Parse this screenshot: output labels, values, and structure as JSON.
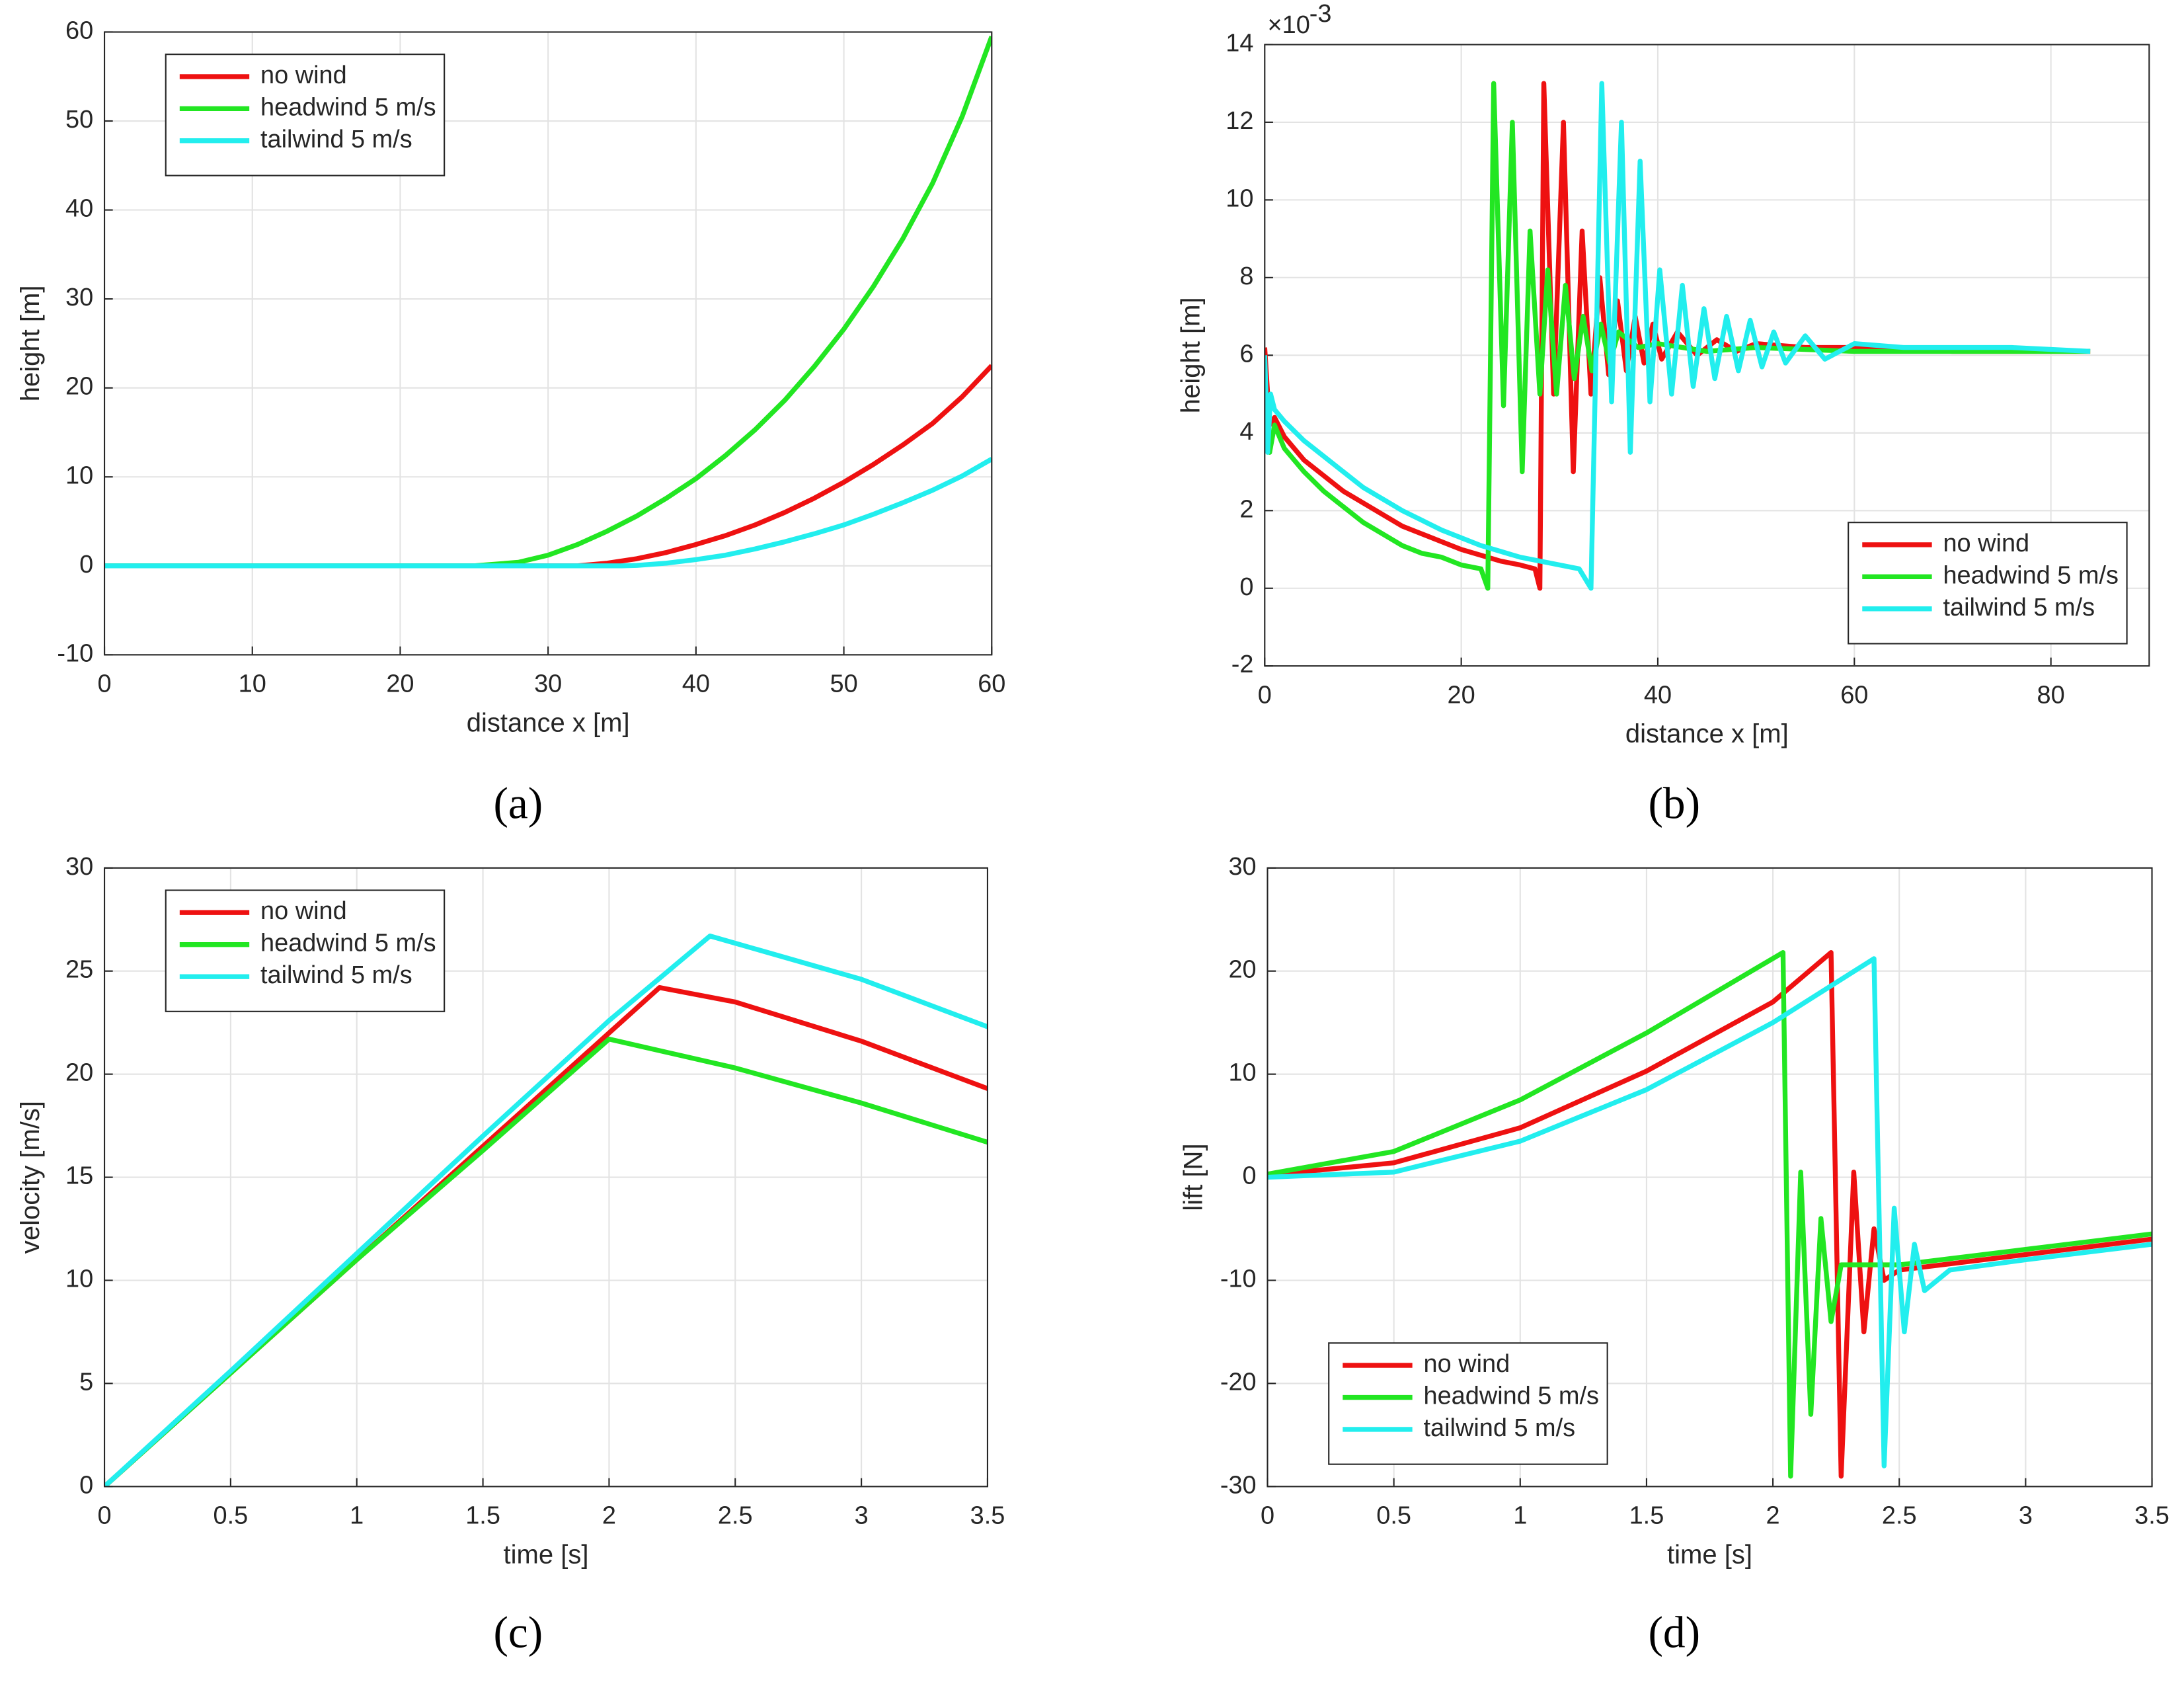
{
  "chart_data": [
    {
      "type": "line",
      "caption": "(a)",
      "xlabel": "distance x [m]",
      "ylabel": "height [m]",
      "xlim": [
        0,
        60
      ],
      "ylim": [
        -10,
        60
      ],
      "xticks": [
        0,
        10,
        20,
        30,
        40,
        50,
        60
      ],
      "yticks": [
        -10,
        0,
        10,
        20,
        30,
        40,
        50,
        60
      ],
      "grid": true,
      "legend": "upper left",
      "series": [
        {
          "name": "no wind",
          "color": "#ee1111",
          "x": [
            0,
            10,
            20,
            25,
            28,
            30,
            32,
            34,
            36,
            38,
            40,
            42,
            44,
            46,
            48,
            50,
            52,
            54,
            56,
            58,
            60
          ],
          "values": [
            0,
            0,
            0,
            0,
            0,
            0,
            0,
            0.3,
            0.8,
            1.5,
            2.4,
            3.4,
            4.6,
            6,
            7.6,
            9.4,
            11.4,
            13.6,
            16,
            19,
            22.5
          ]
        },
        {
          "name": "headwind 5 m/s",
          "color": "#22e622",
          "x": [
            0,
            10,
            20,
            25,
            28,
            30,
            32,
            34,
            36,
            38,
            40,
            42,
            44,
            46,
            48,
            50,
            52,
            54,
            56,
            58,
            60
          ],
          "values": [
            0,
            0,
            0,
            0,
            0.4,
            1.2,
            2.4,
            3.9,
            5.6,
            7.6,
            9.8,
            12.4,
            15.3,
            18.6,
            22.4,
            26.6,
            31.4,
            36.8,
            43,
            50.5,
            59.5
          ]
        },
        {
          "name": "tailwind 5 m/s",
          "color": "#22eeee",
          "x": [
            0,
            10,
            20,
            25,
            28,
            30,
            32,
            35,
            36,
            38,
            40,
            42,
            44,
            46,
            48,
            50,
            52,
            54,
            56,
            58,
            60
          ],
          "values": [
            0,
            0,
            0,
            0,
            0,
            0,
            0,
            0,
            0.05,
            0.3,
            0.7,
            1.2,
            1.9,
            2.7,
            3.6,
            4.6,
            5.8,
            7.1,
            8.5,
            10.1,
            12
          ]
        }
      ]
    },
    {
      "type": "line",
      "caption": "(b)",
      "xlabel": "distance x [m]",
      "ylabel": "height [m]",
      "yexponent": {
        "base": "×10",
        "power": "-3"
      },
      "xlim": [
        0,
        90
      ],
      "ylim": [
        -2,
        14
      ],
      "xticks": [
        0,
        20,
        40,
        60,
        80
      ],
      "yticks": [
        -2,
        0,
        2,
        4,
        6,
        8,
        10,
        12,
        14
      ],
      "grid": true,
      "legend": "lower right",
      "series": [
        {
          "name": "no wind",
          "color": "#ee1111",
          "x": [
            0,
            0.5,
            1,
            2,
            4,
            6,
            8,
            10,
            12,
            14,
            16,
            18,
            20,
            22,
            24,
            26,
            27.5,
            28,
            28.4,
            29.4,
            30.4,
            31.4,
            32.3,
            33.2,
            34.1,
            35,
            35.9,
            36.8,
            37.7,
            38.6,
            39.5,
            40.4,
            42,
            44,
            46,
            48,
            50,
            55,
            60,
            70,
            84
          ],
          "values": [
            6.2,
            4.2,
            4.4,
            3.9,
            3.3,
            2.9,
            2.5,
            2.2,
            1.9,
            1.6,
            1.4,
            1.2,
            1.0,
            0.85,
            0.7,
            0.6,
            0.5,
            0,
            13,
            5,
            12,
            3,
            9.2,
            5,
            8,
            5.5,
            7.4,
            5.6,
            7,
            5.8,
            6.8,
            5.9,
            6.6,
            6,
            6.4,
            6.1,
            6.3,
            6.2,
            6.2,
            6.1,
            6.1
          ]
        },
        {
          "name": "headwind 5 m/s",
          "color": "#22e622",
          "x": [
            0,
            0.5,
            1,
            2,
            4,
            6,
            8,
            10,
            12,
            14,
            16,
            18,
            20,
            22,
            22.7,
            23.3,
            24.3,
            25.2,
            26.2,
            27,
            28,
            28.8,
            29.7,
            30.6,
            31.5,
            32.4,
            33.3,
            34.2,
            35.1,
            36,
            38,
            40,
            45,
            50,
            60,
            70,
            84
          ],
          "values": [
            4.2,
            3.5,
            4.2,
            3.6,
            3.0,
            2.5,
            2.1,
            1.7,
            1.4,
            1.1,
            0.9,
            0.8,
            0.6,
            0.5,
            0,
            13,
            4.7,
            12,
            3,
            9.2,
            5,
            8.2,
            5,
            7.8,
            5.4,
            7,
            5.6,
            6.8,
            5.8,
            6.6,
            6.2,
            6.3,
            6.1,
            6.2,
            6.1,
            6.1,
            6.1
          ]
        },
        {
          "name": "tailwind 5 m/s",
          "color": "#22eeee",
          "x": [
            0,
            0.3,
            0.6,
            1,
            2,
            4,
            6,
            8,
            10,
            12,
            14,
            16,
            18,
            20,
            22,
            24,
            26,
            28,
            30,
            32,
            33.2,
            34.3,
            35.3,
            36.3,
            37.2,
            38.2,
            39.2,
            40.2,
            41.4,
            42.5,
            43.6,
            44.7,
            45.8,
            47,
            48.2,
            49.4,
            50.6,
            51.8,
            53,
            55,
            57,
            60,
            65,
            70,
            76,
            84
          ],
          "values": [
            6,
            3.5,
            5,
            4.6,
            4.3,
            3.8,
            3.4,
            3.0,
            2.6,
            2.3,
            2.0,
            1.75,
            1.5,
            1.3,
            1.1,
            0.95,
            0.8,
            0.7,
            0.6,
            0.5,
            0,
            13,
            4.8,
            12,
            3.5,
            11,
            4.8,
            8.2,
            5,
            7.8,
            5.2,
            7.2,
            5.4,
            7,
            5.6,
            6.9,
            5.7,
            6.6,
            5.8,
            6.5,
            5.9,
            6.3,
            6.2,
            6.2,
            6.2,
            6.1
          ]
        }
      ]
    },
    {
      "type": "line",
      "caption": "(c)",
      "xlabel": "time [s]",
      "ylabel": "velocity [m/s]",
      "xlim": [
        0,
        3.5
      ],
      "ylim": [
        0,
        30
      ],
      "xticks": [
        0,
        0.5,
        1,
        1.5,
        2,
        2.5,
        3,
        3.5
      ],
      "yticks": [
        0,
        5,
        10,
        15,
        20,
        25,
        30
      ],
      "grid": true,
      "legend": "upper left",
      "series": [
        {
          "name": "no wind",
          "color": "#ee1111",
          "x": [
            0,
            0.5,
            1,
            1.5,
            2,
            2.2,
            2.5,
            3,
            3.5
          ],
          "values": [
            0,
            5.5,
            11,
            16.5,
            22,
            24.2,
            23.5,
            21.6,
            19.3
          ]
        },
        {
          "name": "headwind 5 m/s",
          "color": "#22e622",
          "x": [
            0,
            0.5,
            1,
            1.5,
            2,
            2.5,
            3,
            3.5
          ],
          "values": [
            0,
            5.5,
            11,
            16.3,
            21.7,
            20.3,
            18.6,
            16.7
          ]
        },
        {
          "name": "tailwind 5 m/s",
          "color": "#22eeee",
          "x": [
            0,
            0.5,
            1,
            1.5,
            2,
            2.4,
            3,
            3.5
          ],
          "values": [
            0,
            5.6,
            11.3,
            17,
            22.6,
            26.7,
            24.6,
            22.3
          ]
        }
      ]
    },
    {
      "type": "line",
      "caption": "(d)",
      "xlabel": "time [s]",
      "ylabel": "lift [N]",
      "xlim": [
        0,
        3.5
      ],
      "ylim": [
        -30,
        30
      ],
      "xticks": [
        0,
        0.5,
        1,
        1.5,
        2,
        2.5,
        3,
        3.5
      ],
      "yticks": [
        -30,
        -20,
        -10,
        0,
        10,
        20,
        30
      ],
      "grid": true,
      "legend": "lower left",
      "series": [
        {
          "name": "no wind",
          "color": "#ee1111",
          "x": [
            0,
            0.5,
            1,
            1.5,
            2,
            2.23,
            2.27,
            2.32,
            2.36,
            2.4,
            2.44,
            2.5,
            3,
            3.5
          ],
          "values": [
            0.2,
            1.4,
            4.8,
            10.3,
            17,
            21.8,
            -29,
            0.5,
            -15,
            -5,
            -10,
            -9,
            -7.5,
            -6
          ]
        },
        {
          "name": "headwind 5 m/s",
          "color": "#22e622",
          "x": [
            0,
            0.5,
            1,
            1.5,
            2.04,
            2.07,
            2.11,
            2.15,
            2.19,
            2.23,
            2.27,
            2.5,
            3,
            3.5
          ],
          "values": [
            0.3,
            2.5,
            7.5,
            14,
            21.8,
            -29,
            0.5,
            -23,
            -4,
            -14,
            -8.5,
            -8.5,
            -7,
            -5.5
          ]
        },
        {
          "name": "tailwind 5 m/s",
          "color": "#22eeee",
          "x": [
            0,
            0.5,
            1,
            1.5,
            2,
            2.4,
            2.44,
            2.48,
            2.52,
            2.56,
            2.6,
            2.7,
            3,
            3.5
          ],
          "values": [
            0,
            0.5,
            3.5,
            8.5,
            15,
            21.2,
            -28,
            -3,
            -15,
            -6.5,
            -11,
            -9,
            -8,
            -6.5
          ]
        }
      ]
    }
  ]
}
